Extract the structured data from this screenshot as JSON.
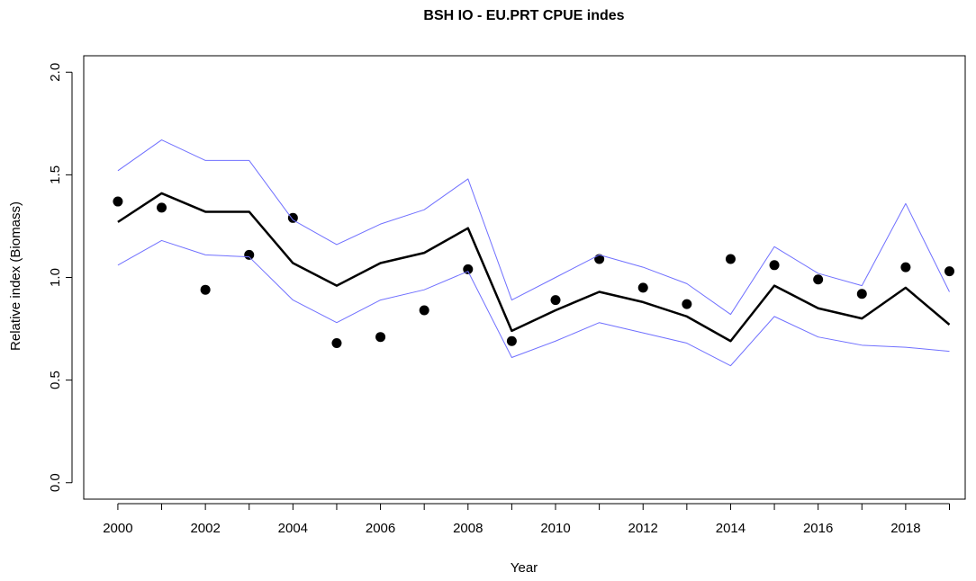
{
  "chart_data": {
    "type": "line",
    "title": "BSH IO - EU.PRT CPUE indes",
    "x_label": "Year",
    "y_label": "Relative index (Biomass)",
    "x": [
      2000,
      2001,
      2002,
      2003,
      2004,
      2005,
      2006,
      2007,
      2008,
      2009,
      2010,
      2011,
      2012,
      2013,
      2014,
      2015,
      2016,
      2017,
      2018,
      2019
    ],
    "series": [
      {
        "mode": "markers",
        "color": "#000000",
        "values": [
          1.37,
          1.34,
          0.94,
          1.11,
          1.29,
          0.68,
          0.71,
          0.84,
          1.04,
          0.69,
          0.89,
          1.09,
          0.95,
          0.87,
          1.09,
          1.06,
          0.99,
          0.92,
          1.05,
          1.03
        ]
      },
      {
        "mode": "lines",
        "color": "#000000",
        "width": 2.5,
        "values": [
          1.27,
          1.41,
          1.32,
          1.32,
          1.07,
          0.96,
          1.07,
          1.12,
          1.24,
          0.74,
          0.84,
          0.93,
          0.88,
          0.81,
          0.69,
          0.96,
          0.85,
          0.8,
          0.95,
          0.77
        ]
      },
      {
        "mode": "lines",
        "color": "#7070ff",
        "width": 1,
        "values": [
          1.52,
          1.67,
          1.57,
          1.57,
          1.28,
          1.16,
          1.26,
          1.33,
          1.48,
          0.89,
          1.0,
          1.11,
          1.05,
          0.97,
          0.82,
          1.15,
          1.02,
          0.96,
          1.36,
          0.93
        ]
      },
      {
        "mode": "lines",
        "color": "#7070ff",
        "width": 1,
        "values": [
          1.06,
          1.18,
          1.11,
          1.1,
          0.89,
          0.78,
          0.89,
          0.94,
          1.03,
          0.61,
          0.69,
          0.78,
          0.73,
          0.68,
          0.57,
          0.81,
          0.71,
          0.67,
          0.66,
          0.64
        ]
      }
    ],
    "xlim": [
      1999.22,
      2019.36
    ],
    "ylim": [
      -0.08,
      2.08
    ],
    "xticks": [
      2000,
      2002,
      2004,
      2006,
      2008,
      2010,
      2012,
      2014,
      2016,
      2018
    ],
    "xminorticks": [
      2001,
      2003,
      2005,
      2007,
      2009,
      2011,
      2013,
      2015,
      2017,
      2019
    ],
    "yticks": [
      {
        "value": 0,
        "label": "0.0"
      },
      {
        "value": 0.5,
        "label": "0.5"
      },
      {
        "value": 1,
        "label": "1.0"
      },
      {
        "value": 1.5,
        "label": "1.5"
      },
      {
        "value": 2,
        "label": "2.0"
      }
    ],
    "grid": false
  }
}
